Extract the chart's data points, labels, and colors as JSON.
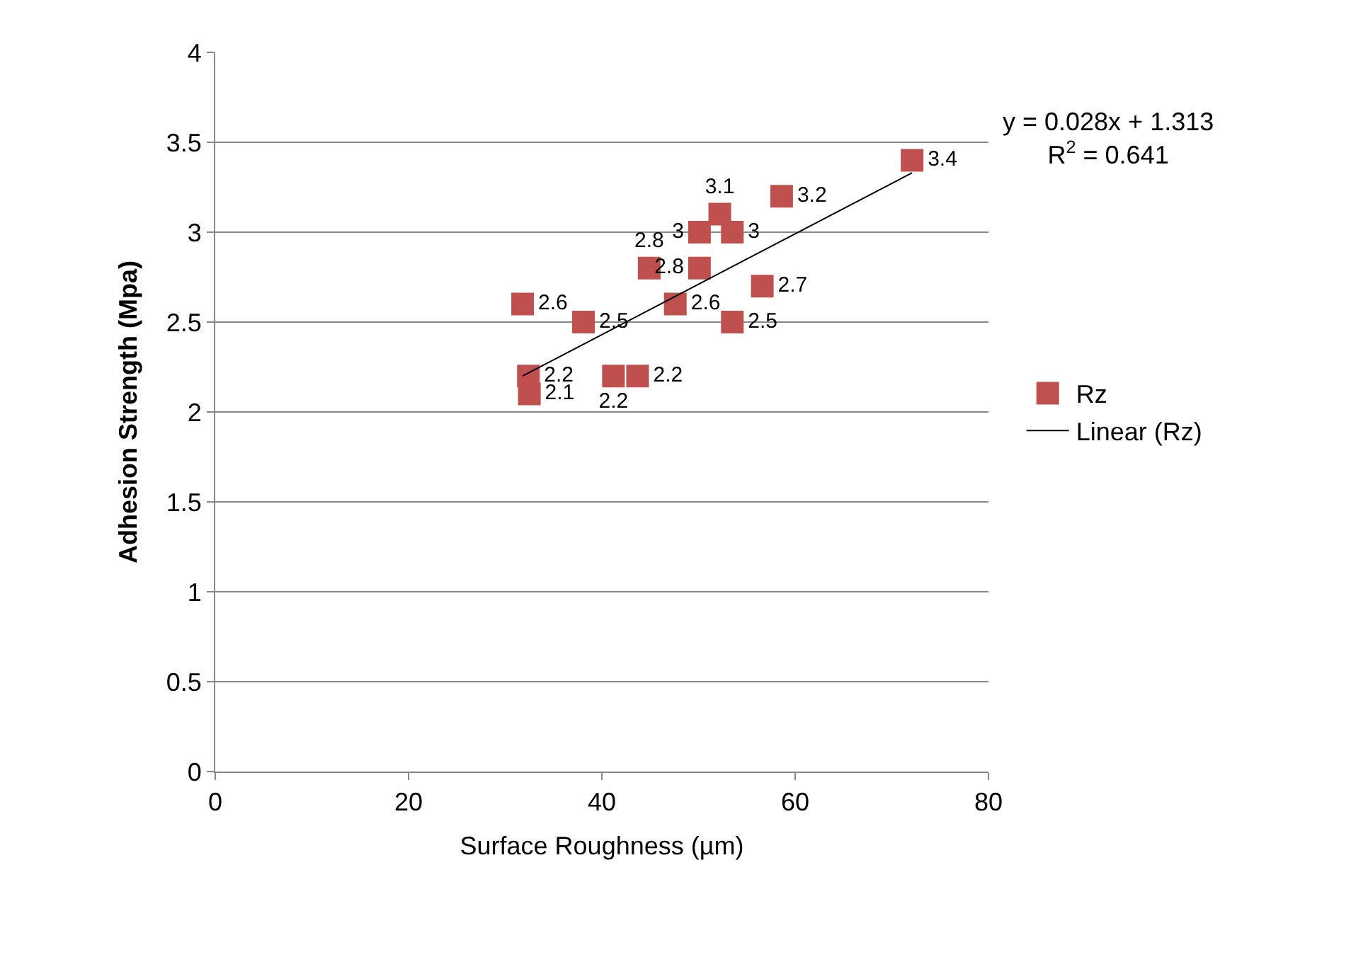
{
  "chart_data": {
    "type": "scatter",
    "xlabel": "Surface Roughness (µm)",
    "ylabel": "Adhesion Strength (Mpa)",
    "xlim": [
      0,
      80
    ],
    "xticks": [
      0,
      20,
      40,
      60,
      80
    ],
    "ylim": [
      0,
      4
    ],
    "yticks": [
      0,
      0.5,
      1,
      1.5,
      2,
      2.5,
      3,
      3.5,
      4
    ],
    "grid": "y",
    "legend": "right",
    "annotations": [
      "y = 0.028x + 1.313\nR$^{2}$ = 0.641"
    ],
    "series": [
      {
        "name": "Rz",
        "marker": "square",
        "value_labels": [
          "2.6",
          "2.2",
          "2.1",
          "2.5",
          "2.2",
          "2.2",
          "2.8",
          "2.6",
          "3",
          "2.8",
          "3.1",
          "3",
          "2.5",
          "2.7",
          "3.2",
          "3.4"
        ],
        "color": "#c0504d",
        "x": [
          31.8,
          32.4,
          32.5,
          38.1,
          41.2,
          43.7,
          44.9,
          47.6,
          50.1,
          50.1,
          52.2,
          53.5,
          53.5,
          56.6,
          58.6,
          72.1
        ],
        "values": [
          2.6,
          2.2,
          2.1,
          2.5,
          2.2,
          2.2,
          2.8,
          2.6,
          3.0,
          2.8,
          3.1,
          3.0,
          2.5,
          2.7,
          3.2,
          3.4
        ]
      },
      {
        "name": "Linear (Rz)",
        "type": "line",
        "marker": "none",
        "color": "#000000",
        "x": [
          31.8,
          72.1
        ],
        "values": [
          2.2,
          3.33
        ]
      }
    ]
  }
}
